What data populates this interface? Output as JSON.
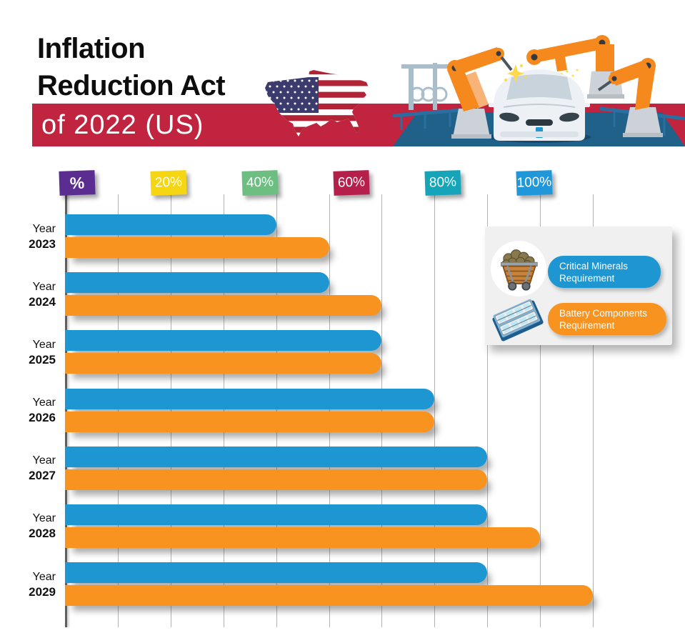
{
  "header": {
    "title_line1": "Inflation",
    "title_line2": "Reduction Act",
    "banner_text": "of 2022 (US)",
    "banner_color": "#c0243f"
  },
  "axis_notes": [
    {
      "text": "%",
      "color": "#5b2d90"
    },
    {
      "text": "20%",
      "color": "#f6d513"
    },
    {
      "text": "40%",
      "color": "#6cbe81"
    },
    {
      "text": "60%",
      "color": "#b5204a"
    },
    {
      "text": "80%",
      "color": "#16a4b8"
    },
    {
      "text": "100%",
      "color": "#2097d9"
    }
  ],
  "chart_data": {
    "type": "bar",
    "orientation": "horizontal",
    "title": "Inflation Reduction Act of 2022 (US)",
    "category_prefix": "Year",
    "categories": [
      "2023",
      "2024",
      "2025",
      "2026",
      "2027",
      "2028",
      "2029"
    ],
    "series": [
      {
        "name": "Critical Minerals Requirement",
        "color": "#1e96d2",
        "values": [
          40,
          50,
          60,
          70,
          80,
          80,
          80
        ]
      },
      {
        "name": "Battery Components Requirement",
        "color": "#f7931e",
        "values": [
          50,
          60,
          60,
          70,
          80,
          90,
          100
        ]
      }
    ],
    "xlim": [
      0,
      100
    ],
    "unit": "%",
    "gridline_interval": 10,
    "grid": true,
    "legend_position": "upper-right"
  },
  "legend": {
    "items": [
      {
        "line1": "Critical Minerals",
        "line2": "Requirement",
        "color": "#1e96d2",
        "icon": "mine-cart-icon"
      },
      {
        "line1": "Battery Components",
        "line2": "Requirement",
        "color": "#f7931e",
        "icon": "battery-components-icon"
      }
    ]
  }
}
